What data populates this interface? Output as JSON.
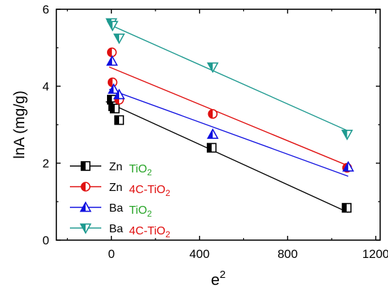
{
  "chart_data": {
    "type": "scatter",
    "xlabel_base": "e",
    "xlabel_exp": "2",
    "ylabel": "lnA (mg/g)",
    "xlim": [
      -250,
      1220
    ],
    "ylim": [
      0,
      6
    ],
    "x_ticks": [
      0,
      400,
      800,
      1200
    ],
    "y_ticks": [
      0,
      2,
      4,
      6
    ],
    "grid": false,
    "legend_position": "bottom-left",
    "series": [
      {
        "id": "zn-tio2",
        "metal": "Zn",
        "material": "TiO",
        "material_sub": "2",
        "marker": "half-square",
        "color": "#000000",
        "material_color": "#2aa52a",
        "x": [
          2,
          8,
          15,
          35,
          455,
          1068
        ],
        "y": [
          3.65,
          3.48,
          3.42,
          3.12,
          2.4,
          0.84
        ],
        "fit": {
          "x": [
            -25,
            1075
          ],
          "y": [
            3.6,
            0.72
          ]
        }
      },
      {
        "id": "zn-4c-tio2",
        "metal": "Zn",
        "material": "4C-TiO",
        "material_sub": "2",
        "marker": "half-circle",
        "color": "#e01010",
        "material_color": "#e01010",
        "x": [
          2,
          5,
          35,
          460,
          1070
        ],
        "y": [
          4.88,
          4.1,
          3.65,
          3.28,
          1.88
        ],
        "fit": {
          "x": [
            -10,
            1080
          ],
          "y": [
            4.5,
            1.92
          ]
        }
      },
      {
        "id": "ba-tio2",
        "metal": "Ba",
        "material": "TiO",
        "material_sub": "2",
        "marker": "half-triangle-up",
        "color": "#1010e0",
        "material_color": "#2aa52a",
        "x": [
          3,
          10,
          35,
          460,
          1075
        ],
        "y": [
          4.65,
          3.92,
          3.78,
          2.75,
          1.9
        ],
        "fit": {
          "x": [
            -10,
            1075
          ],
          "y": [
            3.92,
            1.66
          ]
        }
      },
      {
        "id": "ba-4c-tio2",
        "metal": "Ba",
        "material": "4C-TiO",
        "material_sub": "2",
        "marker": "half-triangle-down",
        "color": "#1e9a90",
        "material_color": "#e01010",
        "x": [
          0,
          5,
          35,
          460,
          1070
        ],
        "y": [
          5.65,
          5.58,
          5.25,
          4.5,
          2.75
        ],
        "fit": {
          "x": [
            0,
            1070
          ],
          "y": [
            5.58,
            2.85
          ]
        }
      }
    ]
  }
}
